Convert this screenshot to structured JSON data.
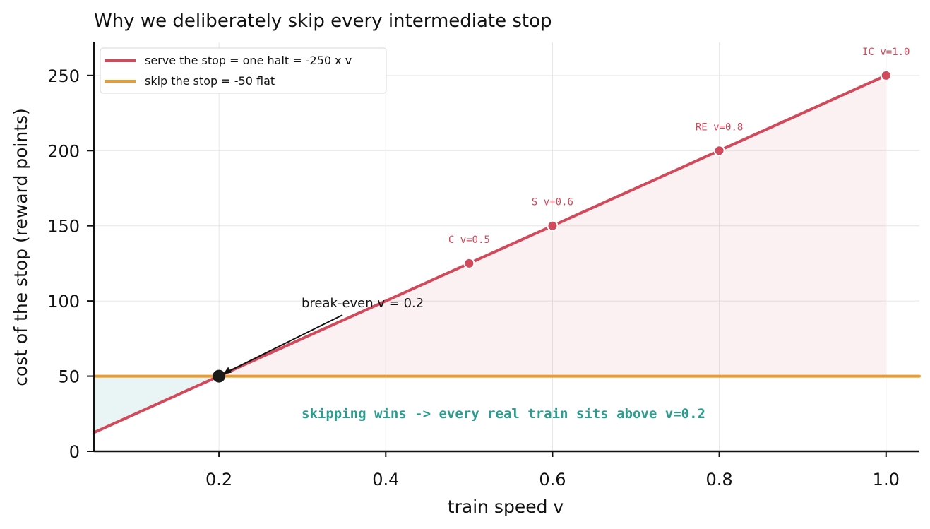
{
  "chart_data": {
    "type": "line",
    "title": "Why we deliberately skip every intermediate stop",
    "xlabel": "train speed  v",
    "ylabel": "cost of the stop  (reward points)",
    "xlim": [
      0.05,
      1.04
    ],
    "ylim": [
      0,
      272
    ],
    "xticks": [
      "0.2",
      "0.4",
      "0.6",
      "0.8",
      "1.0"
    ],
    "yticks": [
      "0",
      "50",
      "100",
      "150",
      "200",
      "250"
    ],
    "grid": true,
    "legend_position": "top-left",
    "series": [
      {
        "name": "serve the stop  = one halt = -250 x v",
        "color": "#d1495b",
        "x": [
          0.05,
          1.0
        ],
        "y": [
          12.5,
          250
        ]
      },
      {
        "name": "skip the stop = -50 flat",
        "color": "#e89c30",
        "x": [
          0.05,
          1.04
        ],
        "y": [
          50,
          50
        ]
      }
    ],
    "points": [
      {
        "label": "C  v=0.5",
        "x": 0.5,
        "y": 125
      },
      {
        "label": "S  v=0.6",
        "x": 0.6,
        "y": 150
      },
      {
        "label": "RE  v=0.8",
        "x": 0.8,
        "y": 200
      },
      {
        "label": "IC  v=1.0",
        "x": 1.0,
        "y": 250
      }
    ],
    "break_even": {
      "x": 0.2,
      "y": 50,
      "label": "break-even  v = 0.2"
    },
    "annotation": "skipping wins   ->  every real train sits above v=0.2",
    "colors": {
      "serve": "#d1495b",
      "skip": "#e89c30",
      "wins": "#2a9d8f",
      "break_even": "#1a1a1a"
    }
  }
}
